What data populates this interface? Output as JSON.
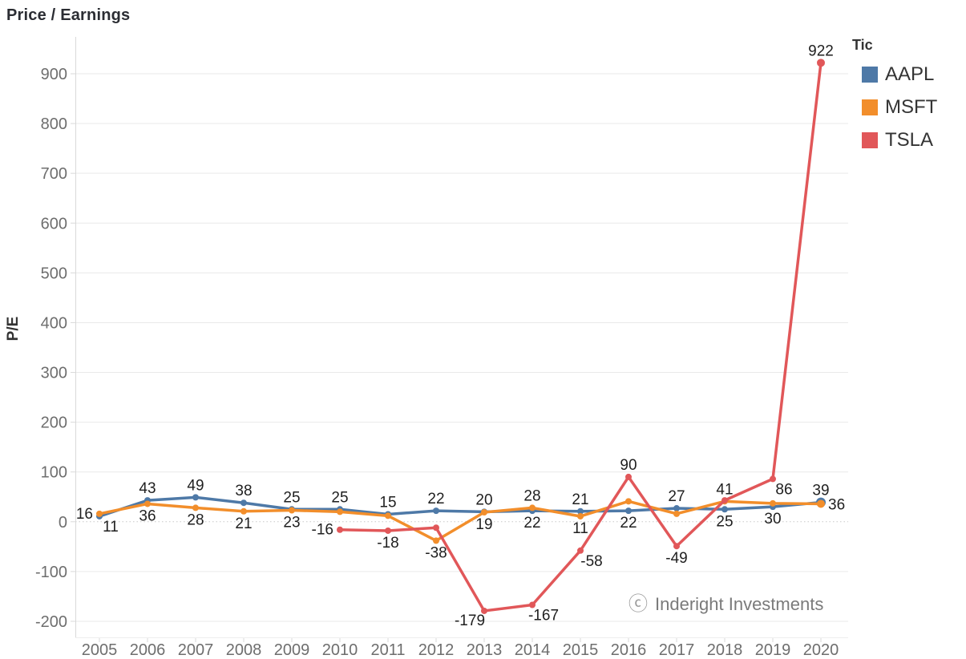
{
  "title": "Price / Earnings",
  "legend": {
    "title": "Tic",
    "items": [
      {
        "label": "AAPL",
        "color": "#4e79a7"
      },
      {
        "label": "MSFT",
        "color": "#f28e2b"
      },
      {
        "label": "TSLA",
        "color": "#e15759"
      }
    ]
  },
  "watermark": {
    "icon": "ⓒ",
    "text": "Inderight Investments"
  },
  "chart_data": {
    "type": "line",
    "title": "Price / Earnings",
    "xlabel": "",
    "ylabel": "P/E",
    "x_ticks": [
      "2005",
      "2006",
      "2007",
      "2008",
      "2009",
      "2010",
      "2011",
      "2012",
      "2013",
      "2014",
      "2015",
      "2016",
      "2017",
      "2018",
      "2019",
      "2020"
    ],
    "y_ticks": [
      900,
      800,
      700,
      600,
      500,
      400,
      300,
      200,
      100,
      0,
      -100,
      -200
    ],
    "ylim": [
      -232,
      974
    ],
    "grid": true,
    "legend_position": "top-right",
    "series": [
      {
        "name": "AAPL",
        "color": "#4e79a7",
        "points": [
          {
            "x": 2005,
            "y": 11,
            "label": "11",
            "labelPos": "below-right"
          },
          {
            "x": 2006,
            "y": 43,
            "label": "43",
            "labelPos": "above"
          },
          {
            "x": 2007,
            "y": 49,
            "label": "49",
            "labelPos": "above"
          },
          {
            "x": 2008,
            "y": 38,
            "label": "38",
            "labelPos": "above"
          },
          {
            "x": 2009,
            "y": 25,
            "label": "25",
            "labelPos": "above"
          },
          {
            "x": 2010,
            "y": 25,
            "label": "25",
            "labelPos": "above"
          },
          {
            "x": 2011,
            "y": 15,
            "label": "15",
            "labelPos": "above"
          },
          {
            "x": 2012,
            "y": 22,
            "label": "22",
            "labelPos": "above"
          },
          {
            "x": 2013,
            "y": 20,
            "label": "20",
            "labelPos": "above"
          },
          {
            "x": 2014,
            "y": 22,
            "label": "22",
            "labelPos": "below"
          },
          {
            "x": 2015,
            "y": 21,
            "label": "21",
            "labelPos": "above"
          },
          {
            "x": 2016,
            "y": 22,
            "label": "22",
            "labelPos": "below"
          },
          {
            "x": 2017,
            "y": 27,
            "label": "27",
            "labelPos": "above"
          },
          {
            "x": 2018,
            "y": 25,
            "label": "25",
            "labelPos": "below"
          },
          {
            "x": 2019,
            "y": 30,
            "label": "30",
            "labelPos": "below"
          },
          {
            "x": 2020,
            "y": 39,
            "label": "39",
            "labelPos": "above",
            "r": 6
          }
        ]
      },
      {
        "name": "MSFT",
        "color": "#f28e2b",
        "points": [
          {
            "x": 2005,
            "y": 16,
            "label": "16",
            "labelPos": "left"
          },
          {
            "x": 2006,
            "y": 36,
            "label": "36",
            "labelPos": "below"
          },
          {
            "x": 2007,
            "y": 28,
            "label": "28",
            "labelPos": "below"
          },
          {
            "x": 2008,
            "y": 21,
            "label": "21",
            "labelPos": "below"
          },
          {
            "x": 2009,
            "y": 23,
            "label": "23",
            "labelPos": "below"
          },
          {
            "x": 2010,
            "y": 20,
            "label": null,
            "labelPos": null
          },
          {
            "x": 2011,
            "y": 12,
            "label": null,
            "labelPos": null
          },
          {
            "x": 2012,
            "y": -38,
            "label": "-38",
            "labelPos": "below"
          },
          {
            "x": 2013,
            "y": 19,
            "label": "19",
            "labelPos": "below"
          },
          {
            "x": 2014,
            "y": 28,
            "label": "28",
            "labelPos": "above"
          },
          {
            "x": 2015,
            "y": 11,
            "label": "11",
            "labelPos": "below"
          },
          {
            "x": 2016,
            "y": 41,
            "label": null,
            "labelPos": null
          },
          {
            "x": 2017,
            "y": 16,
            "label": null,
            "labelPos": null
          },
          {
            "x": 2018,
            "y": 41,
            "label": "41",
            "labelPos": "above"
          },
          {
            "x": 2019,
            "y": 37,
            "label": null,
            "labelPos": null
          },
          {
            "x": 2020,
            "y": 36,
            "label": "36",
            "labelPos": "right",
            "r": 5
          }
        ]
      },
      {
        "name": "TSLA",
        "color": "#e15759",
        "points": [
          {
            "x": 2010,
            "y": -16,
            "label": "-16",
            "labelPos": "left"
          },
          {
            "x": 2011,
            "y": -18,
            "label": "-18",
            "labelPos": "below"
          },
          {
            "x": 2012,
            "y": -12,
            "label": null,
            "labelPos": null
          },
          {
            "x": 2013,
            "y": -179,
            "label": "-179",
            "labelPos": "below-left"
          },
          {
            "x": 2014,
            "y": -167,
            "label": "-167",
            "labelPos": "below-right"
          },
          {
            "x": 2015,
            "y": -58,
            "label": "-58",
            "labelPos": "below-right"
          },
          {
            "x": 2016,
            "y": 90,
            "label": "90",
            "labelPos": "above"
          },
          {
            "x": 2017,
            "y": -49,
            "label": "-49",
            "labelPos": "below"
          },
          {
            "x": 2018,
            "y": 43,
            "label": null,
            "labelPos": null
          },
          {
            "x": 2019,
            "y": 86,
            "label": "86",
            "labelPos": "below-right"
          },
          {
            "x": 2020,
            "y": 922,
            "label": "922",
            "labelPos": "above",
            "r": 5
          }
        ]
      }
    ]
  },
  "colors": {
    "grid": "#e9e9e9",
    "zero_line": "#c8c8c8",
    "axis_line": "#d9d9d9",
    "tick_text": "#6e6e6e",
    "data_label": "#1f1f1f"
  }
}
